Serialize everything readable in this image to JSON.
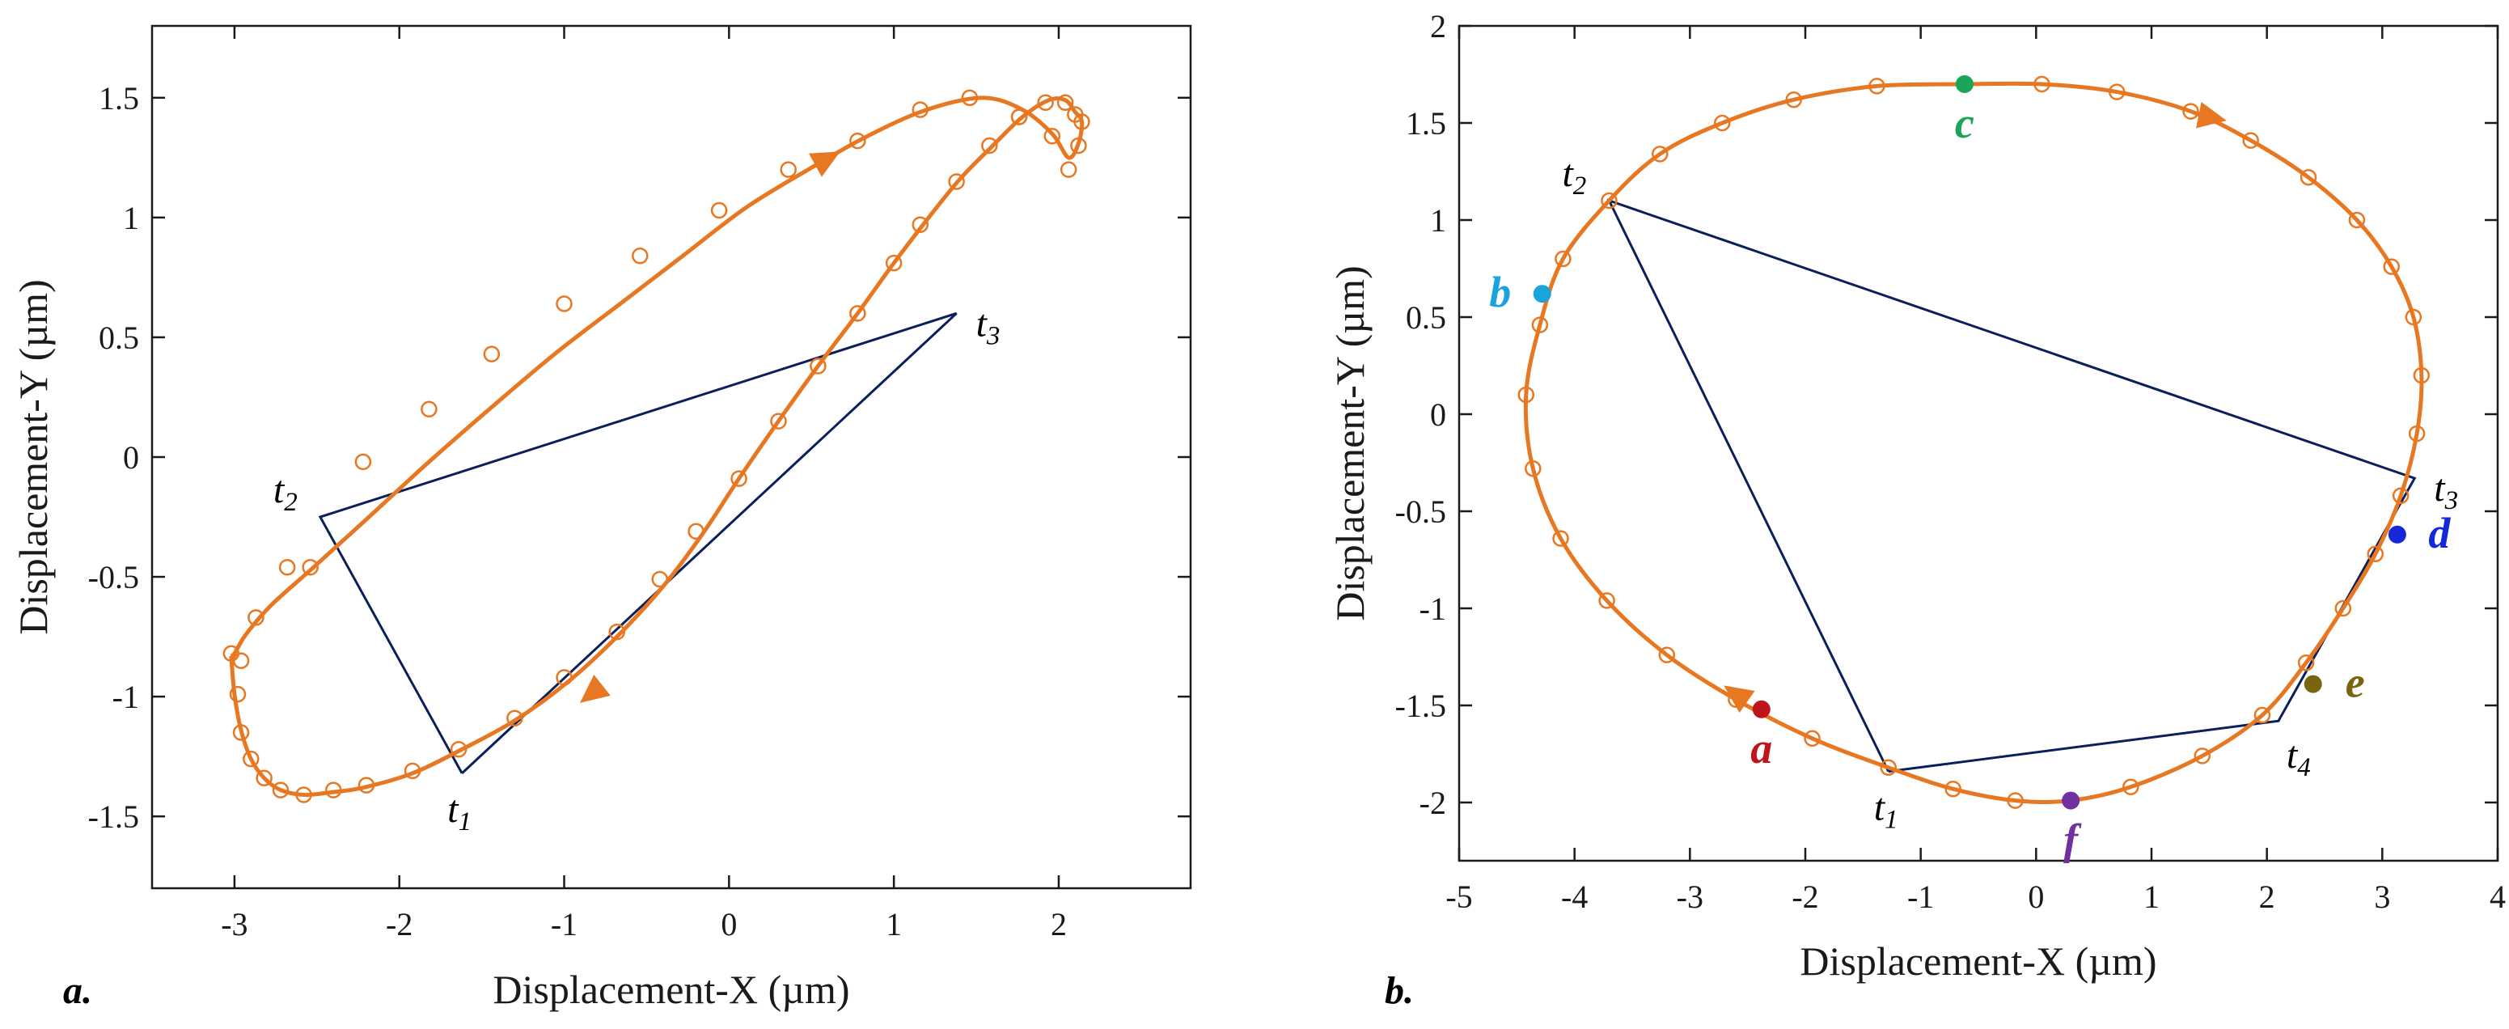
{
  "colors": {
    "trajectory": "#E87722",
    "triangle": "#0B1F5C",
    "axes": "#1a1a1a"
  },
  "chart_data": [
    {
      "type": "scatter",
      "panel_label": "a.",
      "xlabel": "Displacement-X (µm)",
      "ylabel": "Displacement-Y (µm)",
      "xlim": [
        -3.5,
        2.8
      ],
      "ylim": [
        -1.8,
        1.8
      ],
      "xticks": [
        -3,
        -2,
        -1,
        0,
        1,
        2
      ],
      "yticks": [
        -1.5,
        -1,
        -0.5,
        0,
        0.5,
        1,
        1.5
      ],
      "xtick_labels": [
        "-3",
        "-2",
        "-1",
        "0",
        "1",
        "2"
      ],
      "ytick_labels": [
        "-1.5",
        "-1",
        "-0.5",
        "0",
        "0.5",
        "1",
        "1.5"
      ],
      "grid": false,
      "trajectory": {
        "x": [
          -3.02,
          -3.0,
          -2.96,
          -2.9,
          -2.82,
          -2.72,
          -2.58,
          -2.42,
          -2.22,
          -1.92,
          -1.62,
          -1.3,
          -0.98,
          -0.68,
          -0.4,
          -0.16,
          0.06,
          0.3,
          0.54,
          0.78,
          1.0,
          1.2,
          1.4,
          1.6,
          1.78,
          1.94,
          2.04,
          2.1,
          2.14,
          2.12,
          2.06,
          1.96,
          1.78,
          1.54,
          1.2,
          0.84,
          0.48,
          0.1,
          -0.28,
          -0.66,
          -1.04,
          -1.42,
          -1.82,
          -2.2,
          -2.52,
          -2.78,
          -2.93,
          -3.0,
          -3.02
        ],
        "y": [
          -0.83,
          -0.99,
          -1.14,
          -1.26,
          -1.34,
          -1.39,
          -1.41,
          -1.4,
          -1.38,
          -1.32,
          -1.22,
          -1.1,
          -0.94,
          -0.75,
          -0.54,
          -0.32,
          -0.09,
          0.15,
          0.38,
          0.6,
          0.81,
          0.99,
          1.16,
          1.3,
          1.42,
          1.49,
          1.49,
          1.44,
          1.4,
          1.31,
          1.25,
          1.35,
          1.45,
          1.5,
          1.45,
          1.34,
          1.2,
          1.04,
          0.84,
          0.64,
          0.44,
          0.22,
          -0.02,
          -0.26,
          -0.46,
          -0.62,
          -0.74,
          -0.82,
          -0.83
        ],
        "markers_x": [
          -3.02,
          -2.98,
          -2.96,
          -2.9,
          -2.82,
          -2.72,
          -2.58,
          -2.4,
          -2.2,
          -1.92,
          -1.64,
          -1.3,
          -1.0,
          -0.68,
          -0.42,
          -0.2,
          0.06,
          0.3,
          0.54,
          0.78,
          1.0,
          1.16,
          1.38,
          1.58,
          1.76,
          1.92,
          2.04,
          2.1,
          2.14,
          2.12,
          2.06,
          1.96,
          1.76,
          1.46,
          1.16,
          0.78,
          0.36,
          -0.06,
          -0.54,
          -1.0,
          -1.44,
          -1.82,
          -2.22,
          -2.54,
          -2.68,
          -2.87,
          -2.96
        ],
        "markers_y": [
          -0.82,
          -0.99,
          -1.15,
          -1.26,
          -1.34,
          -1.39,
          -1.41,
          -1.39,
          -1.37,
          -1.31,
          -1.22,
          -1.09,
          -0.92,
          -0.73,
          -0.51,
          -0.31,
          -0.09,
          0.15,
          0.38,
          0.6,
          0.81,
          0.97,
          1.15,
          1.3,
          1.42,
          1.48,
          1.48,
          1.43,
          1.4,
          1.3,
          1.2,
          1.34,
          1.42,
          1.5,
          1.45,
          1.32,
          1.2,
          1.03,
          0.84,
          0.64,
          0.43,
          0.2,
          -0.02,
          -0.46,
          -0.46,
          -0.67,
          -0.85
        ]
      },
      "direction_arrows": [
        {
          "x": 0.58,
          "y": 1.24,
          "dx": 1,
          "dy": 0.55
        },
        {
          "x": -0.82,
          "y": -0.98,
          "dx": -0.78,
          "dy": -0.62
        }
      ],
      "triangle": {
        "x": [
          -1.62,
          -2.48,
          1.38,
          -1.62
        ],
        "y": [
          -1.32,
          -0.25,
          0.6,
          -1.32
        ]
      },
      "time_points": [
        {
          "base": "t",
          "sub": "1",
          "x": -1.62,
          "y": -1.32,
          "pos": "below"
        },
        {
          "base": "t",
          "sub": "2",
          "x": -2.48,
          "y": -0.25,
          "pos": "upper-left"
        },
        {
          "base": "t",
          "sub": "3",
          "x": 1.38,
          "y": 0.6,
          "pos": "right"
        }
      ],
      "highlight_points": []
    },
    {
      "type": "scatter",
      "panel_label": "b.",
      "xlabel": "Displacement-X (µm)",
      "ylabel": "Displacement-Y (µm)",
      "xlim": [
        -5,
        4
      ],
      "ylim": [
        -2.3,
        2
      ],
      "xticks": [
        -5,
        -4,
        -3,
        -2,
        -1,
        0,
        1,
        2,
        3,
        4
      ],
      "yticks": [
        -2,
        -1.5,
        -1,
        -0.5,
        0,
        0.5,
        1,
        1.5,
        2
      ],
      "xtick_labels": [
        "-5",
        "-4",
        "-3",
        "-2",
        "-1",
        "0",
        "1",
        "2",
        "3",
        "4"
      ],
      "ytick_labels": [
        "-2",
        "-1.5",
        "-1",
        "-0.5",
        "0",
        "0.5",
        "1",
        "1.5",
        "2"
      ],
      "grid": false,
      "trajectory": {
        "x": [
          -0.62,
          0.05,
          0.7,
          1.34,
          1.86,
          2.36,
          2.78,
          3.08,
          3.27,
          3.34,
          3.3,
          3.16,
          2.94,
          2.66,
          2.34,
          1.96,
          1.44,
          0.82,
          0.3,
          -0.18,
          -0.72,
          -1.28,
          -1.94,
          -2.6,
          -3.2,
          -3.72,
          -4.12,
          -4.36,
          -4.42,
          -4.3,
          -4.1,
          -3.7,
          -3.26,
          -2.72,
          -2.1,
          -1.38,
          -0.62
        ],
        "y": [
          1.7,
          1.7,
          1.66,
          1.56,
          1.41,
          1.22,
          1.0,
          0.76,
          0.5,
          0.2,
          -0.1,
          -0.42,
          -0.72,
          -1.0,
          -1.28,
          -1.55,
          -1.76,
          -1.92,
          -1.99,
          -1.99,
          -1.93,
          -1.82,
          -1.67,
          -1.47,
          -1.24,
          -0.96,
          -0.64,
          -0.28,
          0.1,
          0.46,
          0.8,
          1.1,
          1.34,
          1.5,
          1.62,
          1.69,
          1.7
        ]
      },
      "markers_x": null,
      "direction_arrows": [
        {
          "x": 1.5,
          "y": 1.53,
          "dx": 1,
          "dy": -0.2
        },
        {
          "x": -2.58,
          "y": -1.45,
          "dx": -1,
          "dy": 0.7
        }
      ],
      "triangle": {
        "x": [
          -1.28,
          -3.7,
          3.28,
          2.1,
          -1.28
        ],
        "y": [
          -1.84,
          1.1,
          -0.33,
          -1.58,
          -1.84
        ]
      },
      "time_points": [
        {
          "base": "t",
          "sub": "1",
          "x": -1.28,
          "y": -1.84,
          "pos": "below"
        },
        {
          "base": "t",
          "sub": "2",
          "x": -3.7,
          "y": 1.1,
          "pos": "upper-left"
        },
        {
          "base": "t",
          "sub": "3",
          "x": 3.28,
          "y": -0.33,
          "pos": "right"
        },
        {
          "base": "t",
          "sub": "4",
          "x": 2.1,
          "y": -1.58,
          "pos": "below-right"
        }
      ],
      "highlight_points": [
        {
          "label": "a",
          "x": -2.38,
          "y": -1.52,
          "color": "#C0161B",
          "label_dx": 0,
          "label_dy": 1
        },
        {
          "label": "b",
          "x": -4.28,
          "y": 0.62,
          "color": "#1BA3DE",
          "label_dx": -1,
          "label_dy": 0
        },
        {
          "label": "c",
          "x": -0.62,
          "y": 1.7,
          "color": "#1AA559",
          "label_dx": 0,
          "label_dy": 1
        },
        {
          "label": "d",
          "x": 3.13,
          "y": -0.62,
          "color": "#1428D9",
          "label_dx": 1,
          "label_dy": 0
        },
        {
          "label": "e",
          "x": 2.4,
          "y": -1.39,
          "color": "#7A6410",
          "label_dx": 1,
          "label_dy": 0
        },
        {
          "label": "f",
          "x": 0.3,
          "y": -1.99,
          "color": "#7030A0",
          "label_dx": 0,
          "label_dy": 1
        }
      ]
    }
  ]
}
